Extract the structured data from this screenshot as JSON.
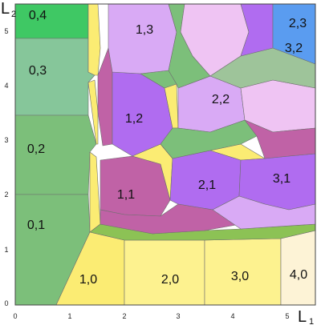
{
  "axes": {
    "x_name": "L",
    "x_sub": "1",
    "y_name": "L",
    "y_sub": "2",
    "x_ticks": [
      "0",
      "1",
      "2",
      "3",
      "4",
      "5"
    ],
    "y_ticks": [
      "0",
      "1",
      "2",
      "3",
      "4",
      "5"
    ]
  },
  "region_labels": [
    "0,4",
    "0,3",
    "0,2",
    "0,1",
    "1,0",
    "2,0",
    "3,0",
    "4,0",
    "1,1",
    "2,1",
    "3,1",
    "1,2",
    "2,2",
    "1,3",
    "2,3",
    "3,2"
  ],
  "colors": {
    "green_dark": "#3fc864",
    "green_mid": "#7cbf7a",
    "green_pale": "#86c69a",
    "green_yellow": "#8cc255",
    "yellow": "#fbec73",
    "yellow_light": "#fdf28f",
    "cream": "#fdf3d6",
    "purple": "#b06cf0",
    "magenta": "#c062a6",
    "lavender": "#d9aaf5",
    "pink": "#efc4f3",
    "blue": "#5a9cf0",
    "green_lav": "#9ec49a"
  }
}
